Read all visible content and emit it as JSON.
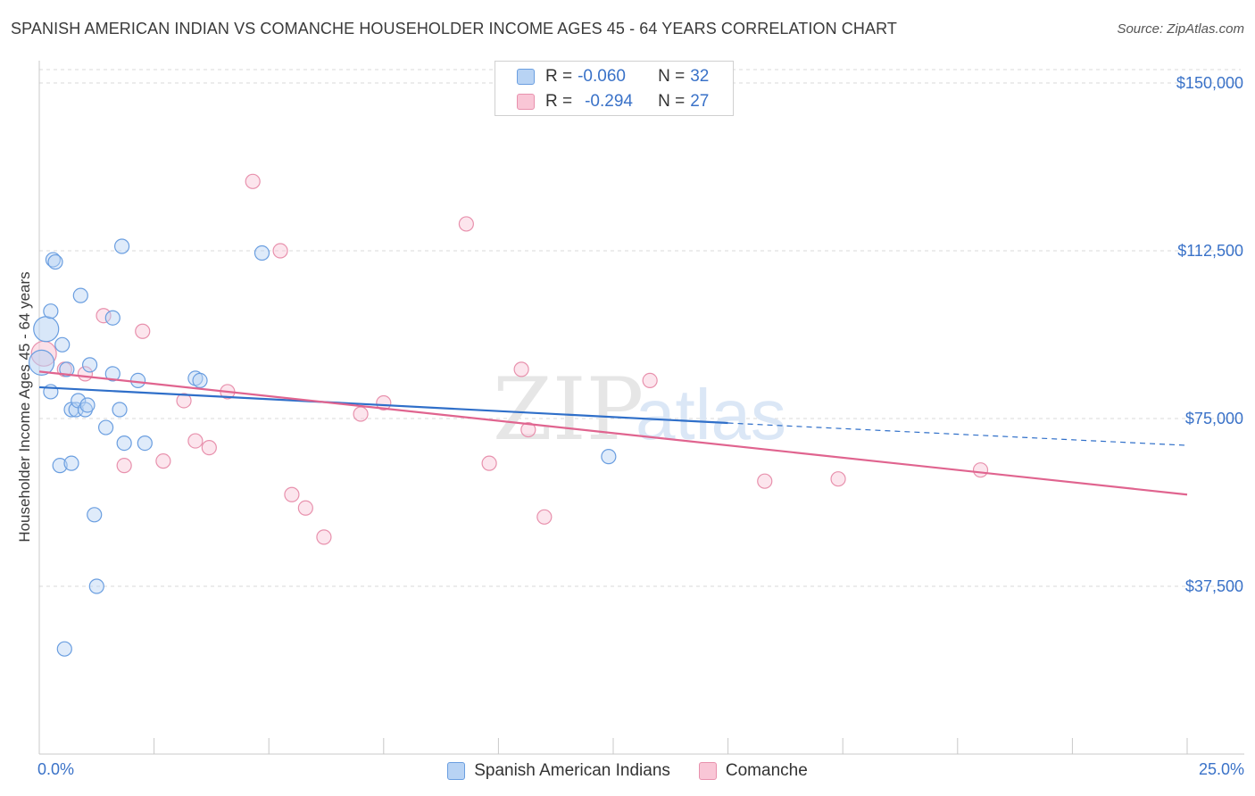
{
  "header": {
    "title": "SPANISH AMERICAN INDIAN VS COMANCHE HOUSEHOLDER INCOME AGES 45 - 64 YEARS CORRELATION CHART",
    "source": "Source: ZipAtlas.com"
  },
  "watermark": {
    "zip": "ZIP",
    "atlas": "atlas"
  },
  "legend": {
    "r_label": "R =",
    "n_label": "N =",
    "series": [
      {
        "name": "Spanish American Indians",
        "r": "-0.060",
        "n": "32",
        "fill": "#b8d3f4",
        "stroke": "#6a9ee0"
      },
      {
        "name": "Comanche",
        "r": "-0.294",
        "n": "27",
        "fill": "#f9c6d6",
        "stroke": "#e891ad"
      }
    ]
  },
  "colors": {
    "blue_line": "#2f6fc9",
    "pink_line": "#e0648f",
    "blue_label": "#3a72c8",
    "grid": "#d9d9d9"
  },
  "chart_data": {
    "type": "scatter",
    "title": "SPANISH AMERICAN INDIAN VS COMANCHE HOUSEHOLDER INCOME AGES 45 - 64 YEARS CORRELATION CHART",
    "xlabel": "",
    "ylabel": "Householder Income Ages 45 - 64 years",
    "xlim": [
      0,
      25
    ],
    "ylim": [
      0,
      153000
    ],
    "x_tick_labels": {
      "min": "0.0%",
      "max": "25.0%"
    },
    "y_ticks": [
      {
        "value": 37500,
        "label": "$37,500"
      },
      {
        "value": 75000,
        "label": "$75,000"
      },
      {
        "value": 112500,
        "label": "$112,500"
      },
      {
        "value": 150000,
        "label": "$150,000"
      }
    ],
    "series": [
      {
        "name": "Spanish American Indians",
        "color": "#6a9ee0",
        "fill": "#b8d3f4",
        "points": [
          [
            0.05,
            87500
          ],
          [
            0.15,
            95000
          ],
          [
            0.25,
            81000
          ],
          [
            0.25,
            99000
          ],
          [
            0.3,
            110500
          ],
          [
            0.35,
            110000
          ],
          [
            0.45,
            64500
          ],
          [
            0.5,
            91500
          ],
          [
            0.6,
            86000
          ],
          [
            0.7,
            65000
          ],
          [
            0.7,
            77000
          ],
          [
            0.8,
            77000
          ],
          [
            0.85,
            79000
          ],
          [
            0.9,
            102500
          ],
          [
            1.0,
            77000
          ],
          [
            1.05,
            78000
          ],
          [
            1.1,
            87000
          ],
          [
            1.2,
            53500
          ],
          [
            1.25,
            37500
          ],
          [
            1.45,
            73000
          ],
          [
            1.6,
            85000
          ],
          [
            1.6,
            97500
          ],
          [
            1.75,
            77000
          ],
          [
            1.8,
            113500
          ],
          [
            1.85,
            69500
          ],
          [
            2.15,
            83500
          ],
          [
            2.3,
            69500
          ],
          [
            3.4,
            84000
          ],
          [
            3.5,
            83500
          ],
          [
            4.85,
            112000
          ],
          [
            12.4,
            66500
          ],
          [
            0.55,
            23500
          ]
        ],
        "trend": {
          "x0": 0,
          "y0": 82000,
          "x1": 15.0,
          "y1": 74000,
          "dash_x1": 25,
          "dash_y1": 69000
        }
      },
      {
        "name": "Comanche",
        "color": "#e891ad",
        "fill": "#f9c6d6",
        "points": [
          [
            0.1,
            89500
          ],
          [
            0.55,
            86000
          ],
          [
            1.0,
            85000
          ],
          [
            1.4,
            98000
          ],
          [
            1.85,
            64500
          ],
          [
            2.25,
            94500
          ],
          [
            2.7,
            65500
          ],
          [
            3.15,
            79000
          ],
          [
            3.4,
            70000
          ],
          [
            3.7,
            68500
          ],
          [
            4.1,
            81000
          ],
          [
            4.65,
            128000
          ],
          [
            5.25,
            112500
          ],
          [
            5.5,
            58000
          ],
          [
            5.8,
            55000
          ],
          [
            6.2,
            48500
          ],
          [
            7.0,
            76000
          ],
          [
            7.5,
            78500
          ],
          [
            9.3,
            118500
          ],
          [
            9.8,
            65000
          ],
          [
            10.5,
            86000
          ],
          [
            10.65,
            72500
          ],
          [
            11.0,
            53000
          ],
          [
            13.3,
            83500
          ],
          [
            15.8,
            61000
          ],
          [
            17.4,
            61500
          ],
          [
            20.5,
            63500
          ]
        ],
        "trend": {
          "x0": 0,
          "y0": 85500,
          "x1": 25,
          "y1": 58000
        }
      }
    ]
  }
}
